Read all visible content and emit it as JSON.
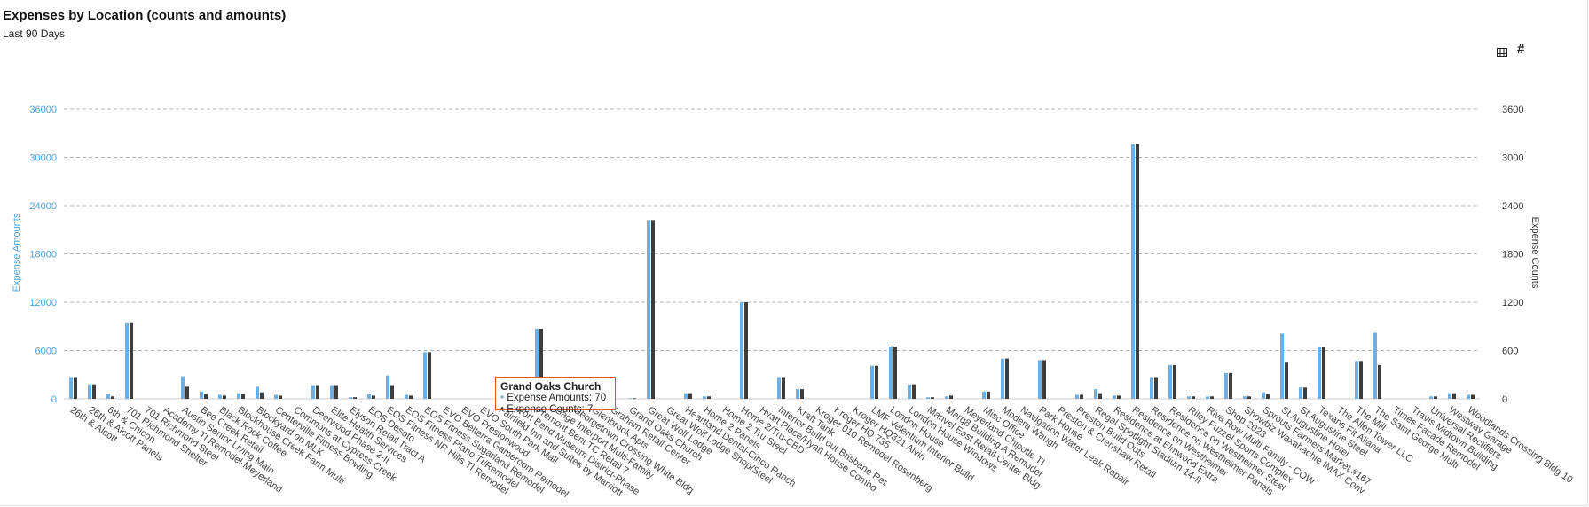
{
  "header": {
    "title": "Expenses by Location (counts and amounts)",
    "subtitle": "Last 90 Days"
  },
  "toolbar": {
    "table_icon": "table-icon",
    "hash_label": "#"
  },
  "colors": {
    "amounts": "#6cb0e6",
    "counts": "#3d3d3d",
    "left_axis": "#4ea2dc",
    "grid": "#b5b5b5",
    "tooltip_border": "#e0532c"
  },
  "tooltip": {
    "title": "Grand Oaks Church",
    "line1": "Expense Amounts: 70",
    "line2": "Expense Counts: 7"
  },
  "chart_data": {
    "type": "bar",
    "title": "Expenses by Location (counts and amounts)",
    "subtitle": "Last 90 Days",
    "ylabel": "Expense Amounts",
    "y2label": "Expense Counts",
    "ylim": [
      0,
      40000
    ],
    "y2lim": [
      0,
      4000
    ],
    "yticks": [
      "0",
      "6000",
      "12000",
      "18000",
      "24000",
      "30000",
      "36000"
    ],
    "y2ticks": [
      "0",
      "600",
      "1200",
      "1800",
      "2400",
      "3000",
      "3600"
    ],
    "grid": true,
    "categories": [
      "26th & Alcott",
      "26th & Alcott Panels",
      "6th & Chicon",
      "701 Richmond Shelter",
      "701 Richmond Steel",
      "Academy TI Remodel-Meyerland",
      "Austin Senior Living Main",
      "Bee Creek Retail",
      "Black Rock Coffee",
      "Blockhouse Creek Farm Multi",
      "Blockyard on MLK",
      "Centerville Fitness Bowling",
      "Commons at Cypress Creek",
      "Deerwood Phase 2-II",
      "Elite Health Services",
      "Elyson Retail Tract A",
      "EOS Desoto",
      "EOS Fitness NR Hills TI Remodel",
      "EOS Fitness Plano TI/Remodel",
      "EOS Fitness Sugarland Remodel",
      "EVO Belterra Gameroom Remodel",
      "EVO Prestonwood",
      "EVO South Park Mall",
      "Fairfield Inn and Suites by Marriott",
      "Fort Bend Museum District-Phase",
      "Fremont Bent TC Retail 7",
      "Gage Interport Multi-Family",
      "Georgetown Crossing White Bldg",
      "Glenbrook Apts",
      "Graham Retail Center",
      "Grand Oaks Church",
      "Great Wolf Lodge",
      "Great Wolf Lodge Shop/Steel",
      "Heartland Dental-Cinco Ranch",
      "Home 2 Panels",
      "Home 2 Tru Steel",
      "Home 2/Tru-CBD",
      "Hyatt Place/Hyatt House Combo",
      "Interior Build out Brisbane Ret",
      "Kraft Tank",
      "Kroger 010 Remodel Rosenberg",
      "Kroger HQ 735",
      "Kroger HQ321 Alvin",
      "LMF Velentium Interior Build",
      "London House",
      "London House Windows",
      "Manvel East Retail Center Bldg",
      "Marq8 Building A Remodel",
      "Meyerland Chipotle TI",
      "Misc Office",
      "Modera Waugh",
      "Navigation Water Leak Repair",
      "Park House",
      "Preston & Crenshaw Retail",
      "Preston Build Outs",
      "Regal Spotlight Stadium 14-II",
      "Residence at Elmwood Extra",
      "Residence on Westheimer",
      "Residence on Westheimer Panels",
      "Residence on Westheimer Steel",
      "Riley Fuzzel Sports Complex",
      "Riva Row Multi Family - COW",
      "Shop 2023",
      "Showbiz Waxahachie IMAX Conv",
      "Sprouts Farmers Market #167",
      "St Augustine Hotel",
      "St Augustine Steel",
      "Texans Fit Aliana",
      "The Allen Tower LLC",
      "The Mill",
      "The Saint George Multi",
      "Times Facade Remodel",
      "Travis Midtown Building",
      "Universal Rectifiers",
      "Westway Garage",
      "Woodlands Crossing Bldg 10"
    ],
    "series": [
      {
        "name": "Expense Amounts",
        "axis": "left",
        "values": [
          2700,
          1800,
          600,
          9500,
          0,
          0,
          2800,
          900,
          500,
          700,
          1500,
          500,
          0,
          1700,
          1700,
          200,
          600,
          2900,
          500,
          5800,
          0,
          0,
          0,
          1400,
          0,
          8700,
          0,
          0,
          0,
          0,
          70,
          22200,
          0,
          700,
          300,
          0,
          12000,
          0,
          2700,
          1200,
          0,
          0,
          0,
          4100,
          6500,
          1800,
          200,
          300,
          0,
          900,
          5000,
          0,
          4800,
          0,
          500,
          1200,
          400,
          31600,
          2700,
          4200,
          300,
          300,
          3200,
          300,
          800,
          8100,
          1400,
          6400,
          0,
          4700,
          8200,
          0,
          0,
          300,
          700,
          500
        ]
      },
      {
        "name": "Expense Counts",
        "axis": "right",
        "values": [
          270,
          180,
          30,
          950,
          0,
          0,
          150,
          60,
          40,
          60,
          80,
          40,
          0,
          170,
          170,
          20,
          40,
          170,
          40,
          580,
          0,
          0,
          0,
          80,
          0,
          870,
          0,
          0,
          0,
          0,
          7,
          2220,
          0,
          70,
          30,
          0,
          1200,
          0,
          270,
          120,
          0,
          0,
          0,
          410,
          650,
          180,
          20,
          40,
          0,
          90,
          500,
          0,
          480,
          0,
          50,
          70,
          40,
          3160,
          270,
          420,
          30,
          30,
          320,
          30,
          60,
          460,
          140,
          640,
          0,
          470,
          420,
          0,
          0,
          30,
          70,
          50
        ]
      }
    ]
  }
}
